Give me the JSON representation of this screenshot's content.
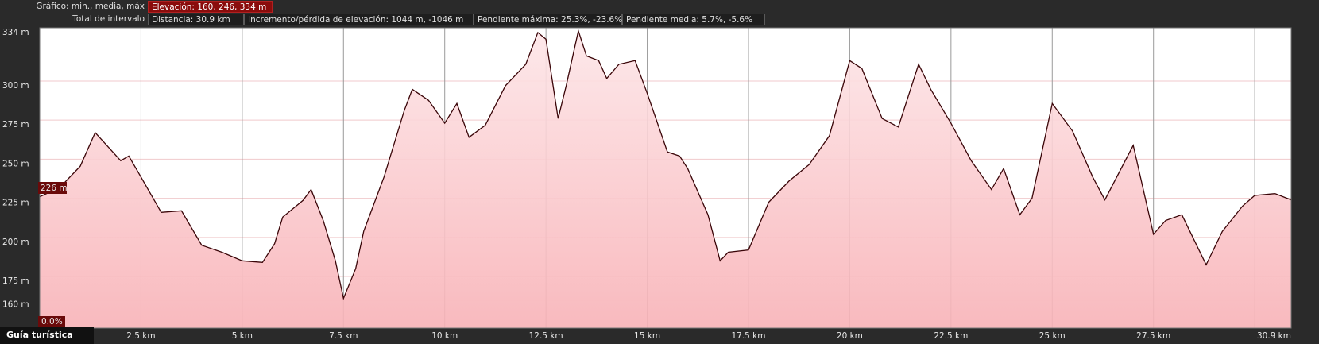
{
  "header": {
    "chart_label": "Gráfico: min., media, máx",
    "elevation": "Elevación: 160, 246, 334 m",
    "interval_label": "Total de intervalo",
    "distance": "Distancia: 30.9 km",
    "gain_loss": "Incremento/pérdida de elevación: 1044 m, -1046 m",
    "max_slope": "Pendiente máxima: 25.3%, -23.6%",
    "avg_slope": "Pendiente media: 5.7%, -5.6%"
  },
  "cursor": {
    "elevation": "226 m",
    "slope": "0.0%"
  },
  "footer": {
    "button": "Guía turística"
  },
  "chart_data": {
    "type": "area",
    "color": "#3a0508",
    "fill_top": "#fde6e8",
    "fill_bottom": "#f8b2b7",
    "x": [
      0,
      0.5,
      1.0,
      1.37,
      2.0,
      2.2,
      2.5,
      3.0,
      3.5,
      4.0,
      4.5,
      5.0,
      5.5,
      5.8,
      6.0,
      6.5,
      6.7,
      7.0,
      7.3,
      7.5,
      7.8,
      8.0,
      8.5,
      9.0,
      9.2,
      9.6,
      10.0,
      10.3,
      10.6,
      11.0,
      11.5,
      12.0,
      12.3,
      12.5,
      12.8,
      13.0,
      13.3,
      13.5,
      13.8,
      14.0,
      14.3,
      14.7,
      15.0,
      15.5,
      15.8,
      16.0,
      16.5,
      16.8,
      17.0,
      17.5,
      18.0,
      18.5,
      19.0,
      19.5,
      20.0,
      20.3,
      20.8,
      21.2,
      21.7,
      22.0,
      22.5,
      23.0,
      23.5,
      23.8,
      24.2,
      24.5,
      25.0,
      25.5,
      26.0,
      26.3,
      27.0,
      27.5,
      27.8,
      28.2,
      28.8,
      29.2,
      29.7,
      30.0,
      30.5,
      30.9
    ],
    "values": [
      226,
      232,
      245.5,
      267,
      249,
      252,
      238.6,
      216,
      217,
      195,
      190.5,
      185,
      184,
      196,
      213,
      223.6,
      230.6,
      210.8,
      185,
      161,
      180,
      204,
      238.6,
      281,
      294.7,
      287.7,
      273,
      285.6,
      264,
      271.7,
      297,
      310.7,
      331,
      326.7,
      276,
      297,
      332,
      316,
      313,
      301.6,
      310.7,
      313,
      292,
      254.6,
      252,
      244,
      214.5,
      185,
      190.5,
      192,
      222.5,
      236,
      246.6,
      265,
      313,
      308,
      276,
      270.6,
      310.7,
      294.7,
      273,
      249,
      230.6,
      244,
      214.5,
      225,
      285.6,
      268,
      238.6,
      224,
      258.9,
      202,
      210.8,
      214.5,
      182.5,
      203.8,
      220,
      226.8,
      228,
      224
    ],
    "xlim": [
      0,
      30.9
    ],
    "ylim": [
      142,
      334
    ],
    "xticks": [
      {
        "value": 2.5,
        "label": "2.5 km"
      },
      {
        "value": 5,
        "label": "5 km"
      },
      {
        "value": 7.5,
        "label": "7.5 km"
      },
      {
        "value": 10,
        "label": "10 km"
      },
      {
        "value": 12.5,
        "label": "12.5 km"
      },
      {
        "value": 15,
        "label": "15 km"
      },
      {
        "value": 17.5,
        "label": "17.5 km"
      },
      {
        "value": 20,
        "label": "20 km"
      },
      {
        "value": 22.5,
        "label": "22.5 km"
      },
      {
        "value": 25,
        "label": "25 km"
      },
      {
        "value": 27.5,
        "label": "27.5 km"
      },
      {
        "value": 30,
        "label": null
      },
      {
        "value": 30.9,
        "label": "30.9 km"
      }
    ],
    "yticks": [
      {
        "value": 160,
        "label": "160 m"
      },
      {
        "value": 175,
        "label": "175 m"
      },
      {
        "value": 200,
        "label": "200 m"
      },
      {
        "value": 225,
        "label": "225 m"
      },
      {
        "value": 250,
        "label": "250 m"
      },
      {
        "value": 275,
        "label": "275 m"
      },
      {
        "value": 300,
        "label": "300 m"
      },
      {
        "value": 334,
        "label": "334 m"
      }
    ],
    "grid": true
  }
}
